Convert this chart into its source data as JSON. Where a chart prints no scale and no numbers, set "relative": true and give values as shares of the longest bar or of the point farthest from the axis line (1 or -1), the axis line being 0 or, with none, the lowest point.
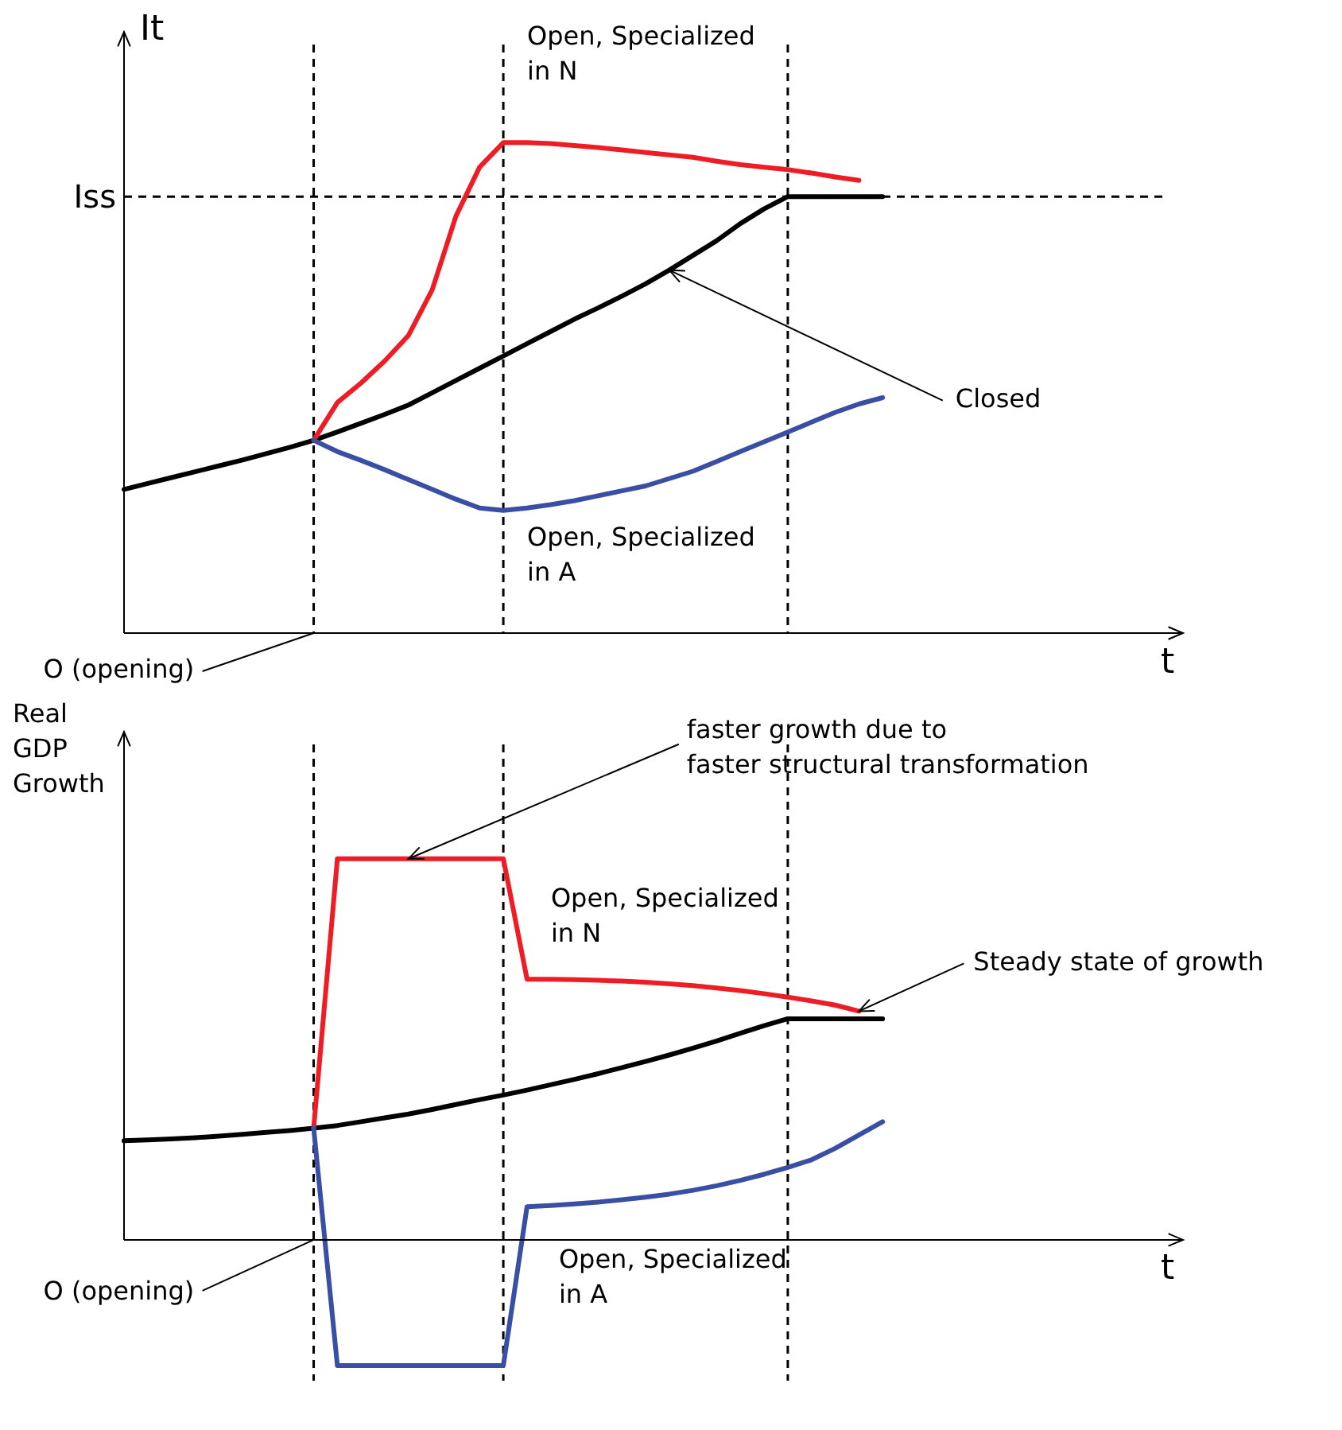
{
  "chart_data": [
    {
      "type": "line",
      "relative": true,
      "grid": "x",
      "ylabel": "It",
      "xlabel": "t",
      "categories": [
        null,
        null,
        null,
        null,
        null,
        null,
        null,
        null,
        null,
        null,
        null,
        null,
        null,
        null,
        null,
        null,
        null,
        null,
        null,
        null,
        null,
        null,
        null,
        null,
        null,
        null,
        null,
        null,
        null,
        null,
        null,
        null,
        null,
        null,
        null,
        null,
        null,
        null,
        null,
        null,
        null,
        null,
        null,
        null,
        null
      ],
      "series": [
        {
          "name": "Closed",
          "color": "#000000",
          "values": [
            0.293,
            0.305,
            0.317,
            0.329,
            0.341,
            0.353,
            0.366,
            0.379,
            0.393,
            0.41,
            0.428,
            0.446,
            0.465,
            0.49,
            0.515,
            0.54,
            0.565,
            0.59,
            0.615,
            0.64,
            0.663,
            0.687,
            0.712,
            0.74,
            0.77,
            0.8,
            0.835,
            0.865,
            0.89,
            0.89,
            0.89,
            0.89,
            0.89,
            null,
            null,
            null,
            null,
            null,
            null,
            null,
            null,
            null,
            null,
            null,
            null
          ]
        },
        {
          "name": "Open, Specialized in N",
          "color": "#ee1c25",
          "values": [
            null,
            null,
            null,
            null,
            null,
            null,
            null,
            null,
            0.393,
            0.47,
            0.51,
            0.555,
            0.607,
            0.7,
            0.85,
            0.95,
            1.0,
            1.0,
            0.998,
            0.994,
            0.99,
            0.985,
            0.98,
            0.975,
            0.97,
            0.962,
            0.955,
            0.95,
            0.945,
            0.938,
            0.93,
            0.923,
            null,
            null,
            null,
            null,
            null,
            null,
            null,
            null,
            null,
            null,
            null,
            null,
            null
          ]
        },
        {
          "name": "Open, Specialized in A",
          "color": "#3a4fa3",
          "values": [
            null,
            null,
            null,
            null,
            null,
            null,
            null,
            null,
            0.393,
            0.37,
            0.352,
            0.333,
            0.313,
            0.293,
            0.273,
            0.255,
            0.25,
            0.255,
            0.262,
            0.27,
            0.28,
            0.29,
            0.3,
            0.315,
            0.33,
            0.35,
            0.37,
            0.39,
            0.41,
            0.43,
            0.45,
            0.467,
            0.48,
            null,
            null,
            null,
            null,
            null,
            null,
            null,
            null,
            null,
            null,
            null,
            null
          ]
        }
      ],
      "ref_lines": [
        {
          "axis": "y",
          "value": 0.89,
          "label": "Iss",
          "color": "#000000",
          "line_style": "dashed"
        }
      ],
      "annotations": [
        "O (opening)"
      ]
    },
    {
      "type": "line",
      "relative": true,
      "grid": "x",
      "ylabel": "Real\nGDP\nGrowth",
      "xlabel": "t",
      "categories": [
        null,
        null,
        null,
        null,
        null,
        null,
        null,
        null,
        null,
        null,
        null,
        null,
        null,
        null,
        null,
        null,
        null,
        null,
        null,
        null,
        null,
        null,
        null,
        null,
        null,
        null,
        null,
        null,
        null,
        null,
        null,
        null,
        null,
        null,
        null,
        null,
        null,
        null,
        null,
        null,
        null,
        null,
        null,
        null,
        null
      ],
      "series": [
        {
          "color": "#000000",
          "values": [
            0.26,
            0.262,
            0.265,
            0.268,
            0.272,
            0.277,
            0.282,
            0.287,
            0.293,
            0.3,
            0.31,
            0.32,
            0.33,
            0.342,
            0.355,
            0.368,
            0.38,
            0.393,
            0.407,
            0.421,
            0.436,
            0.452,
            0.468,
            0.485,
            0.503,
            0.522,
            0.542,
            0.562,
            0.58,
            0.58,
            0.58,
            0.58,
            0.58,
            null,
            null,
            null,
            null,
            null,
            null,
            null,
            null,
            null,
            null,
            null,
            null
          ]
        },
        {
          "name": "Open, Specialized in N",
          "color": "#ee1c25",
          "values": [
            null,
            null,
            null,
            null,
            null,
            null,
            null,
            null,
            0.293,
            1.0,
            1.0,
            1.0,
            1.0,
            1.0,
            1.0,
            1.0,
            1.0,
            0.684,
            0.684,
            0.683,
            0.681,
            0.679,
            0.676,
            0.672,
            0.667,
            0.661,
            0.654,
            0.646,
            0.637,
            0.627,
            0.616,
            0.6,
            null,
            null,
            null,
            null,
            null,
            null,
            null,
            null,
            null,
            null,
            null,
            null,
            null
          ]
        },
        {
          "name": "Open, Specialized in A",
          "color": "#3a4fa3",
          "values": [
            null,
            null,
            null,
            null,
            null,
            null,
            null,
            null,
            0.293,
            -0.33,
            -0.33,
            -0.33,
            -0.33,
            -0.33,
            -0.33,
            -0.33,
            -0.33,
            0.087,
            0.09,
            0.094,
            0.099,
            0.105,
            0.112,
            0.12,
            0.13,
            0.142,
            0.156,
            0.172,
            0.19,
            0.21,
            0.24,
            0.275,
            0.31,
            null,
            null,
            null,
            null,
            null,
            null,
            null,
            null,
            null,
            null,
            null,
            null
          ]
        }
      ],
      "annotations": [
        "faster growth due to\nfaster structural transformation",
        "Steady state of growth",
        "O (opening)"
      ]
    }
  ]
}
